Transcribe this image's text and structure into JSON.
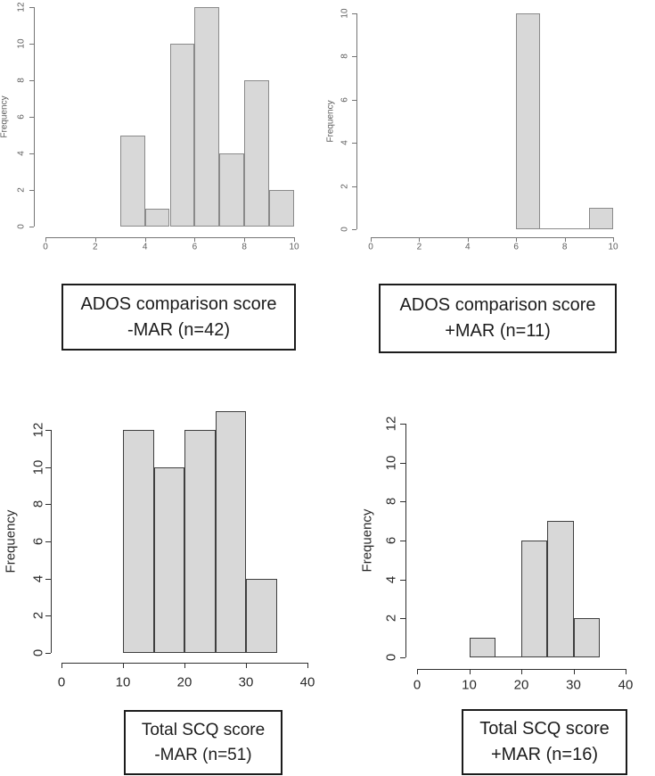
{
  "figure": {
    "background": "#ffffff",
    "bar_fill": "#d8d8d8"
  },
  "chart_data": [
    {
      "id": "ados-comparison-minus-mar",
      "type": "histogram",
      "ylabel": "Frequency",
      "xlim": [
        0,
        10
      ],
      "ylim": [
        0,
        12
      ],
      "xticks": [
        0,
        2,
        4,
        6,
        8,
        10
      ],
      "yticks": [
        0,
        2,
        4,
        6,
        8,
        10,
        12
      ],
      "bin_edges": [
        3,
        4,
        5,
        6,
        7,
        8,
        9,
        10
      ],
      "counts": [
        5,
        1,
        10,
        12,
        4,
        8,
        2
      ],
      "caption": [
        "ADOS comparison score",
        "-MAR (n=42)"
      ]
    },
    {
      "id": "ados-comparison-plus-mar",
      "type": "histogram",
      "ylabel": "Frequency",
      "xlim": [
        0,
        10
      ],
      "ylim": [
        0,
        10
      ],
      "xticks": [
        0,
        2,
        4,
        6,
        8,
        10
      ],
      "yticks": [
        0,
        2,
        4,
        6,
        8,
        10
      ],
      "bin_edges": [
        6,
        7,
        8,
        9,
        10
      ],
      "counts": [
        10,
        0,
        0,
        1
      ],
      "caption": [
        "ADOS comparison score",
        "+MAR (n=11)"
      ]
    },
    {
      "id": "total-scq-minus-mar",
      "type": "histogram",
      "ylabel": "Frequency",
      "xlim": [
        0,
        40
      ],
      "ylim": [
        0,
        12
      ],
      "xticks": [
        0,
        10,
        20,
        30,
        40
      ],
      "yticks": [
        0,
        2,
        4,
        6,
        8,
        10,
        12
      ],
      "bin_edges": [
        10,
        15,
        20,
        25,
        30,
        35
      ],
      "counts": [
        12,
        10,
        12,
        13,
        4
      ],
      "caption": [
        "Total SCQ score",
        "-MAR (n=51)"
      ]
    },
    {
      "id": "total-scq-plus-mar",
      "type": "histogram",
      "ylabel": "Frequency",
      "xlim": [
        0,
        40
      ],
      "ylim": [
        0,
        12
      ],
      "xticks": [
        0,
        10,
        20,
        30,
        40
      ],
      "yticks": [
        0,
        2,
        4,
        6,
        8,
        10,
        12
      ],
      "bin_edges": [
        10,
        15,
        20,
        25,
        30,
        35
      ],
      "counts": [
        1,
        0,
        6,
        7,
        2
      ],
      "caption": [
        "Total SCQ score",
        "+MAR (n=16)"
      ]
    }
  ]
}
